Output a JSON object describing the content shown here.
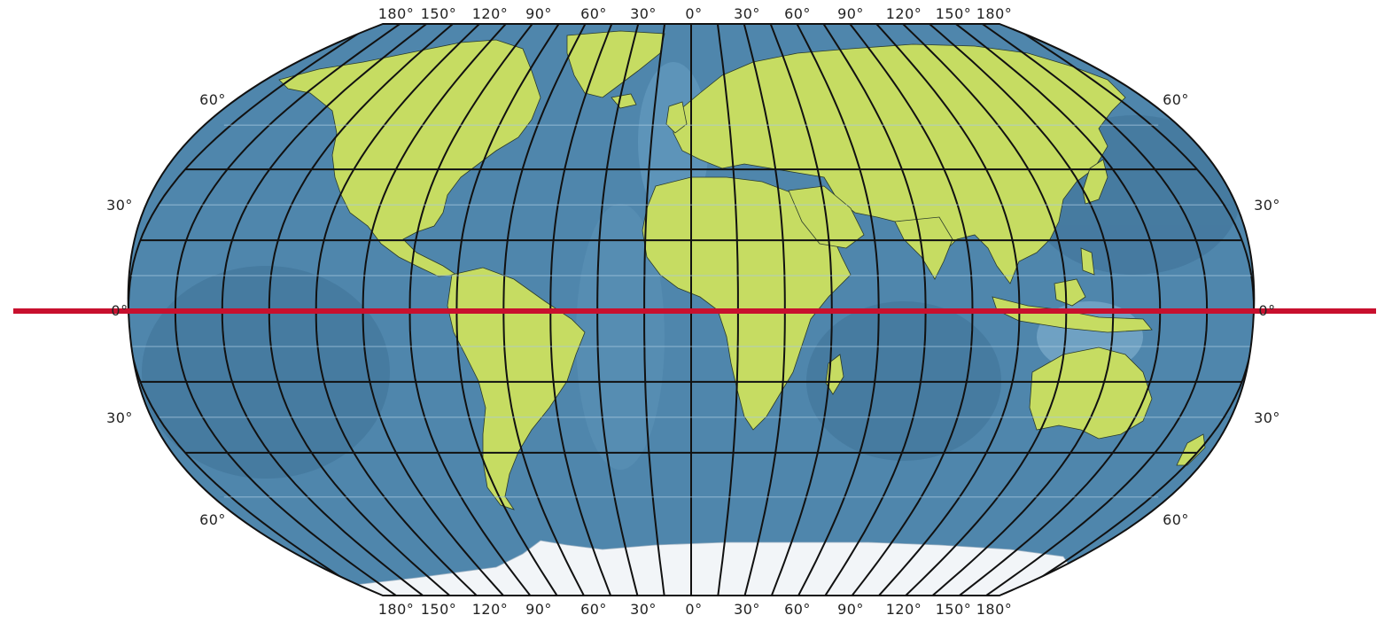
{
  "map": {
    "top_labels": [
      "180°",
      "150°",
      "120°",
      "90°",
      "60°",
      "30°",
      "0°",
      "30°",
      "60°",
      "90°",
      "120°",
      "150°",
      "180°"
    ],
    "bottom_labels": [
      "180°",
      "150°",
      "120°",
      "90°",
      "60°",
      "30°",
      "0°",
      "30°",
      "60°",
      "90°",
      "120°",
      "150°",
      "180°"
    ],
    "left_labels": [
      "60°",
      "30°",
      "0°",
      "30°",
      "60°"
    ],
    "right_labels": [
      "60°",
      "30°",
      "0°",
      "30°",
      "60°"
    ]
  },
  "colors": {
    "ocean": "#4f86ac",
    "ocean_deep": "#3f7298",
    "ocean_shallow": "#8ab8d6",
    "land": "#c6dc62",
    "ice": "#f2f5f8",
    "grid": "#111111",
    "equator": "#c8102e"
  }
}
